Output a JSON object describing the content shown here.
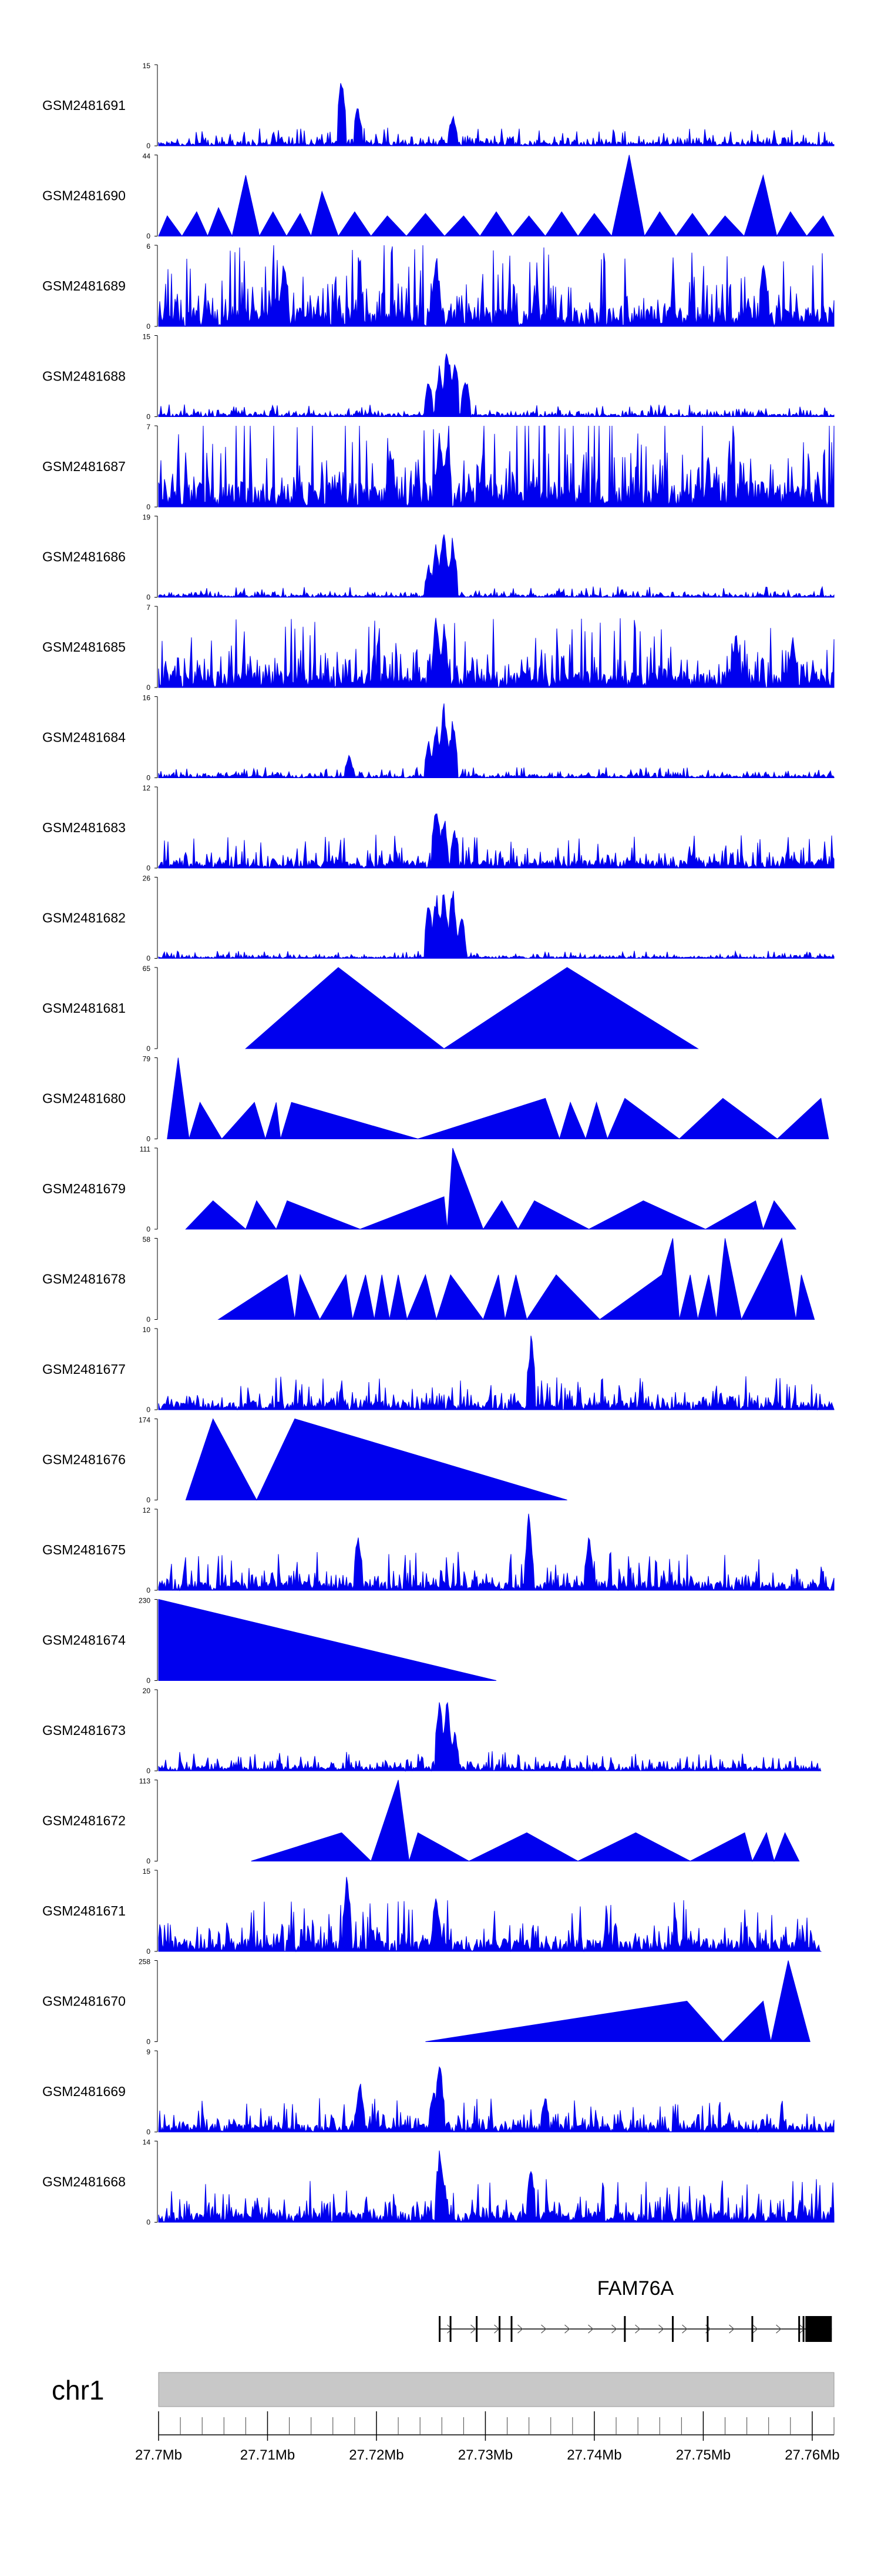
{
  "colors": {
    "signal": "#0000EE",
    "ideogram": "#C8C8C8",
    "gene": "#000000"
  },
  "chart_data": {
    "type": "area",
    "title": "",
    "chromosome": "chr1",
    "xlim_mb": [
      27.7,
      27.762
    ],
    "x_tick_labels": [
      "27.7Mb",
      "27.71Mb",
      "27.72Mb",
      "27.73Mb",
      "27.74Mb",
      "27.75Mb",
      "27.76Mb"
    ],
    "x_tick_values": [
      27.7,
      27.71,
      27.72,
      27.73,
      27.74,
      27.75,
      27.76
    ],
    "gene": {
      "name": "FAM76A",
      "start_mb": 27.7258,
      "end_mb": 27.7618,
      "exons_mb": [
        27.7258,
        27.7268,
        27.7292,
        27.7313,
        27.7324,
        27.7428,
        27.7472,
        27.7504,
        27.7545,
        27.7588,
        27.7592,
        27.7596
      ]
    },
    "tracks": [
      {
        "name": "GSM2481691",
        "ymax": 15,
        "pattern": "dense",
        "base": 0.12,
        "spikes": [
          [
            27.7168,
            1.0
          ],
          [
            27.7183,
            0.55
          ],
          [
            27.727,
            0.45
          ]
        ]
      },
      {
        "name": "GSM2481690",
        "ymax": 44,
        "pattern": "triangles",
        "peaks": [
          [
            27.7008,
            0.25
          ],
          [
            27.7035,
            0.3
          ],
          [
            27.7055,
            0.35
          ],
          [
            27.708,
            0.75
          ],
          [
            27.7105,
            0.3
          ],
          [
            27.713,
            0.28
          ],
          [
            27.715,
            0.55
          ],
          [
            27.718,
            0.3
          ],
          [
            27.721,
            0.25
          ],
          [
            27.7245,
            0.28
          ],
          [
            27.728,
            0.25
          ],
          [
            27.731,
            0.3
          ],
          [
            27.734,
            0.25
          ],
          [
            27.737,
            0.3
          ],
          [
            27.74,
            0.28
          ],
          [
            27.7432,
            1.0
          ],
          [
            27.746,
            0.3
          ],
          [
            27.749,
            0.28
          ],
          [
            27.752,
            0.25
          ],
          [
            27.7555,
            0.75
          ],
          [
            27.758,
            0.3
          ],
          [
            27.761,
            0.25
          ]
        ]
      },
      {
        "name": "GSM2481689",
        "ymax": 6,
        "pattern": "dense",
        "base": 0.55,
        "spikes": [
          [
            27.7115,
            0.95
          ],
          [
            27.7255,
            0.95
          ],
          [
            27.7555,
            1.0
          ]
        ]
      },
      {
        "name": "GSM2481688",
        "ymax": 15,
        "pattern": "dense",
        "base": 0.08,
        "spikes": [
          [
            27.7265,
            1.0
          ],
          [
            27.7258,
            0.7
          ],
          [
            27.7272,
            0.85
          ],
          [
            27.7248,
            0.5
          ],
          [
            27.7282,
            0.55
          ]
        ]
      },
      {
        "name": "GSM2481687",
        "ymax": 7,
        "pattern": "dense",
        "base": 0.7,
        "spikes": [
          [
            27.7258,
            1.0
          ],
          [
            27.7265,
            0.95
          ],
          [
            27.7213,
            0.85
          ]
        ]
      },
      {
        "name": "GSM2481686",
        "ymax": 19,
        "pattern": "dense",
        "base": 0.07,
        "spikes": [
          [
            27.7262,
            1.0
          ],
          [
            27.7255,
            0.75
          ],
          [
            27.727,
            0.8
          ],
          [
            27.7248,
            0.45
          ]
        ]
      },
      {
        "name": "GSM2481685",
        "ymax": 7,
        "pattern": "dense",
        "base": 0.45,
        "spikes": [
          [
            27.7255,
            1.0
          ],
          [
            27.7262,
            0.8
          ],
          [
            27.753,
            0.75
          ],
          [
            27.7582,
            0.65
          ]
        ]
      },
      {
        "name": "GSM2481684",
        "ymax": 16,
        "pattern": "dense",
        "base": 0.07,
        "spikes": [
          [
            27.7262,
            1.0
          ],
          [
            27.7255,
            0.75
          ],
          [
            27.727,
            0.8
          ],
          [
            27.7248,
            0.5
          ],
          [
            27.7175,
            0.3
          ]
        ]
      },
      {
        "name": "GSM2481683",
        "ymax": 12,
        "pattern": "dense",
        "base": 0.22,
        "spikes": [
          [
            27.7255,
            0.95
          ],
          [
            27.7262,
            0.7
          ],
          [
            27.7272,
            0.55
          ]
        ]
      },
      {
        "name": "GSM2481682",
        "ymax": 26,
        "pattern": "dense",
        "base": 0.05,
        "spikes": [
          [
            27.7262,
            1.0
          ],
          [
            27.7255,
            0.9
          ],
          [
            27.7248,
            0.75
          ],
          [
            27.727,
            0.95
          ],
          [
            27.7278,
            0.6
          ]
        ]
      },
      {
        "name": "GSM2481681",
        "ymax": 65,
        "pattern": "triangles",
        "peaks": [
          [
            27.708,
            0.0
          ],
          [
            27.7165,
            1.0
          ],
          [
            27.7262,
            0.0
          ],
          [
            27.7375,
            1.0
          ],
          [
            27.7495,
            0.0
          ]
        ],
        "polyline": true
      },
      {
        "name": "GSM2481680",
        "ymax": 79,
        "pattern": "triangles",
        "peaks": [
          [
            27.7008,
            0.0
          ],
          [
            27.7018,
            1.0
          ],
          [
            27.7028,
            0.0
          ],
          [
            27.7038,
            0.45
          ],
          [
            27.7058,
            0.0
          ],
          [
            27.7088,
            0.45
          ],
          [
            27.7098,
            0.0
          ],
          [
            27.7108,
            0.45
          ],
          [
            27.7112,
            0.0
          ],
          [
            27.7122,
            0.45
          ],
          [
            27.7238,
            0.0
          ],
          [
            27.7355,
            0.5
          ],
          [
            27.7368,
            0.0
          ],
          [
            27.7378,
            0.45
          ],
          [
            27.7392,
            0.0
          ],
          [
            27.7402,
            0.45
          ],
          [
            27.7412,
            0.0
          ],
          [
            27.7428,
            0.5
          ],
          [
            27.7478,
            0.0
          ],
          [
            27.7518,
            0.5
          ],
          [
            27.7568,
            0.0
          ],
          [
            27.7608,
            0.5
          ],
          [
            27.7615,
            0.0
          ]
        ],
        "polyline": true
      },
      {
        "name": "GSM2481679",
        "ymax": 111,
        "pattern": "triangles",
        "peaks": [
          [
            27.7025,
            0.0
          ],
          [
            27.705,
            0.35
          ],
          [
            27.708,
            0.0
          ],
          [
            27.709,
            0.35
          ],
          [
            27.7108,
            0.0
          ],
          [
            27.7118,
            0.35
          ],
          [
            27.7185,
            0.0
          ],
          [
            27.7262,
            0.4
          ],
          [
            27.7265,
            0.0
          ],
          [
            27.727,
            1.0
          ],
          [
            27.7298,
            0.0
          ],
          [
            27.7315,
            0.35
          ],
          [
            27.733,
            0.0
          ],
          [
            27.7345,
            0.35
          ],
          [
            27.7395,
            0.0
          ],
          [
            27.7445,
            0.35
          ],
          [
            27.7502,
            0.0
          ],
          [
            27.7548,
            0.35
          ],
          [
            27.7555,
            0.0
          ],
          [
            27.7565,
            0.35
          ],
          [
            27.7585,
            0.0
          ]
        ],
        "polyline": true
      },
      {
        "name": "GSM2481678",
        "ymax": 58,
        "pattern": "triangles",
        "peaks": [
          [
            27.7055,
            0.0
          ],
          [
            27.7118,
            0.55
          ],
          [
            27.7125,
            0.0
          ],
          [
            27.713,
            0.55
          ],
          [
            27.7148,
            0.0
          ],
          [
            27.7172,
            0.55
          ],
          [
            27.7178,
            0.0
          ],
          [
            27.719,
            0.55
          ],
          [
            27.7198,
            0.0
          ],
          [
            27.7205,
            0.55
          ],
          [
            27.7212,
            0.0
          ],
          [
            27.722,
            0.55
          ],
          [
            27.7228,
            0.0
          ],
          [
            27.7245,
            0.55
          ],
          [
            27.7255,
            0.0
          ],
          [
            27.7268,
            0.55
          ],
          [
            27.7298,
            0.0
          ],
          [
            27.7312,
            0.55
          ],
          [
            27.7318,
            0.0
          ],
          [
            27.7328,
            0.55
          ],
          [
            27.7338,
            0.0
          ],
          [
            27.7365,
            0.55
          ],
          [
            27.7405,
            0.0
          ],
          [
            27.7462,
            0.55
          ],
          [
            27.7472,
            1.0
          ],
          [
            27.7478,
            0.0
          ],
          [
            27.7488,
            0.55
          ],
          [
            27.7495,
            0.0
          ],
          [
            27.7505,
            0.55
          ],
          [
            27.7512,
            0.0
          ],
          [
            27.752,
            1.0
          ],
          [
            27.7535,
            0.0
          ],
          [
            27.7572,
            1.0
          ],
          [
            27.7585,
            0.0
          ],
          [
            27.759,
            0.55
          ],
          [
            27.7602,
            0.0
          ]
        ],
        "polyline": true
      },
      {
        "name": "GSM2481677",
        "ymax": 10,
        "pattern": "dense",
        "base": 0.22,
        "spikes": [
          [
            27.7342,
            1.0
          ]
        ]
      },
      {
        "name": "GSM2481676",
        "ymax": 174,
        "pattern": "triangles",
        "peaks": [
          [
            27.7025,
            0.0
          ],
          [
            27.705,
            1.0
          ],
          [
            27.709,
            0.0
          ],
          [
            27.7125,
            1.0
          ],
          [
            27.7375,
            0.0
          ]
        ],
        "polyline": true
      },
      {
        "name": "GSM2481675",
        "ymax": 12,
        "pattern": "dense",
        "base": 0.25,
        "spikes": [
          [
            27.7183,
            0.8
          ],
          [
            27.734,
            1.0
          ],
          [
            27.7395,
            0.7
          ]
        ]
      },
      {
        "name": "GSM2481674",
        "ymax": 230,
        "pattern": "triangles",
        "peaks": [
          [
            27.7,
            1.0
          ],
          [
            27.731,
            0.0
          ]
        ],
        "polyline": true,
        "startFromTop": true
      },
      {
        "name": "GSM2481673",
        "ymax": 20,
        "pattern": "dense",
        "base": 0.13,
        "spikes": [
          [
            27.7258,
            1.0
          ],
          [
            27.7265,
            0.95
          ],
          [
            27.7272,
            0.55
          ]
        ],
        "endAt": 27.7608
      },
      {
        "name": "GSM2481672",
        "ymax": 113,
        "pattern": "triangles",
        "peaks": [
          [
            27.7085,
            0.0
          ],
          [
            27.7168,
            0.35
          ],
          [
            27.7195,
            0.0
          ],
          [
            27.722,
            1.0
          ],
          [
            27.723,
            0.0
          ],
          [
            27.7238,
            0.35
          ],
          [
            27.7285,
            0.0
          ],
          [
            27.7338,
            0.35
          ],
          [
            27.7385,
            0.0
          ],
          [
            27.7438,
            0.35
          ],
          [
            27.7488,
            0.0
          ],
          [
            27.7538,
            0.35
          ],
          [
            27.7545,
            0.0
          ],
          [
            27.7558,
            0.35
          ],
          [
            27.7565,
            0.0
          ],
          [
            27.7575,
            0.35
          ],
          [
            27.7588,
            0.0
          ]
        ],
        "polyline": true
      },
      {
        "name": "GSM2481671",
        "ymax": 15,
        "pattern": "dense",
        "base": 0.35,
        "spikes": [
          [
            27.7173,
            1.0
          ],
          [
            27.7255,
            0.75
          ]
        ],
        "endAt": 27.7608
      },
      {
        "name": "GSM2481670",
        "ymax": 258,
        "pattern": "triangles",
        "peaks": [
          [
            27.7245,
            0.0
          ],
          [
            27.7485,
            0.5
          ],
          [
            27.7518,
            0.0
          ],
          [
            27.7555,
            0.5
          ],
          [
            27.7562,
            0.0
          ],
          [
            27.7578,
            1.0
          ],
          [
            27.7598,
            0.0
          ]
        ],
        "polyline": true
      },
      {
        "name": "GSM2481669",
        "ymax": 9,
        "pattern": "dense",
        "base": 0.22,
        "spikes": [
          [
            27.7258,
            1.0
          ],
          [
            27.7252,
            0.6
          ],
          [
            27.7185,
            0.65
          ],
          [
            27.7355,
            0.5
          ]
        ]
      },
      {
        "name": "GSM2481668",
        "ymax": 14,
        "pattern": "dense",
        "base": 0.28,
        "spikes": [
          [
            27.7258,
            1.0
          ],
          [
            27.7262,
            0.55
          ],
          [
            27.7342,
            0.8
          ]
        ]
      }
    ]
  }
}
